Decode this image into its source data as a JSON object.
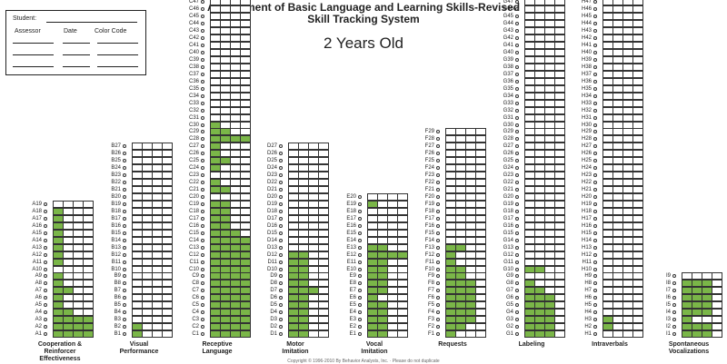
{
  "header": {
    "title_line1": "Assessment of Basic Language and Learning Skills-Revised",
    "title_line2": "Skill Tracking System",
    "age_label": "2 Years Old"
  },
  "student_box": {
    "student_label": "Student:",
    "assessor_label": "Assessor",
    "date_label": "Date",
    "color_code_label": "Color Code"
  },
  "footer": {
    "copyright": "Copyright © 1996-2010 By Behavior Analysts, Inc. · Please do not duplicate"
  },
  "colors": {
    "fill": "#7ab648"
  },
  "sections": [
    {
      "prefix": "A",
      "count": 19,
      "cols": 4,
      "label": [
        "Cooperation &",
        "Reinforcer",
        "Effectiveness"
      ],
      "filled": {
        "1": 4,
        "2": 4,
        "3": 4,
        "4": 2,
        "5": 1,
        "6": 1,
        "7": 2,
        "8": 1,
        "9": 1,
        "11": 1,
        "12": 1,
        "13": 1,
        "14": 1,
        "15": 1,
        "16": 1,
        "17": 1,
        "18": 1
      }
    },
    {
      "prefix": "B",
      "count": 27,
      "cols": 4,
      "label": [
        "Visual",
        "Performance"
      ],
      "filled": {
        "1": 1,
        "2": 1
      }
    },
    {
      "prefix": "C",
      "count": 57,
      "cols": 4,
      "label": [
        "Receptive",
        "Language"
      ],
      "filled": {
        "1": 4,
        "2": 4,
        "3": 4,
        "4": 4,
        "5": 4,
        "6": 4,
        "7": 4,
        "8": 4,
        "9": 4,
        "10": 4,
        "11": 4,
        "12": 4,
        "13": 4,
        "14": 4,
        "15": 3,
        "16": 2,
        "17": 2,
        "18": 2,
        "19": 2,
        "21": 2,
        "22": 1,
        "24": 1,
        "25": 2,
        "26": 1,
        "27": 1,
        "28": 4,
        "29": 2,
        "30": 1
      }
    },
    {
      "prefix": "D",
      "count": 27,
      "cols": 4,
      "label": [
        "Motor",
        "Imitation"
      ],
      "filled": {
        "1": 2,
        "2": 2,
        "3": 2,
        "4": 2,
        "5": 2,
        "6": 2,
        "7": 3,
        "8": 2,
        "9": 2,
        "10": 2,
        "11": 2,
        "12": 2
      }
    },
    {
      "prefix": "E",
      "count": 20,
      "cols": 4,
      "label": [
        "Vocal",
        "Imitation"
      ],
      "filled": {
        "1": 2,
        "2": 2,
        "3": 2,
        "4": 2,
        "5": 2,
        "6": 1,
        "7": 2,
        "8": 2,
        "9": 2,
        "10": 2,
        "11": 2,
        "12": 4,
        "13": 2,
        "19": 1
      }
    },
    {
      "prefix": "F",
      "count": 29,
      "cols": 4,
      "label": [
        "Requests"
      ],
      "filled": {
        "1": 1,
        "2": 2,
        "3": 3,
        "4": 3,
        "5": 3,
        "6": 3,
        "7": 3,
        "8": 3,
        "9": 2,
        "10": 2,
        "11": 1,
        "12": 1,
        "13": 2
      }
    },
    {
      "prefix": "G",
      "count": 47,
      "cols": 4,
      "label": [
        "Labeling"
      ],
      "filled": {
        "1": 3,
        "2": 3,
        "3": 3,
        "4": 3,
        "5": 3,
        "6": 3,
        "7": 2,
        "8": 1,
        "10": 2
      }
    },
    {
      "prefix": "H",
      "count": 49,
      "cols": 4,
      "label": [
        "Intraverbals"
      ],
      "filled": {
        "2": 1,
        "3": 1
      }
    },
    {
      "prefix": "I",
      "count": 9,
      "cols": 4,
      "label": [
        "Spontaneous",
        "Vocalizations"
      ],
      "filled": {
        "1": 3,
        "2": 3,
        "3": 1,
        "4": 3,
        "5": 3,
        "6": 3,
        "7": 3,
        "8": 3
      }
    }
  ]
}
